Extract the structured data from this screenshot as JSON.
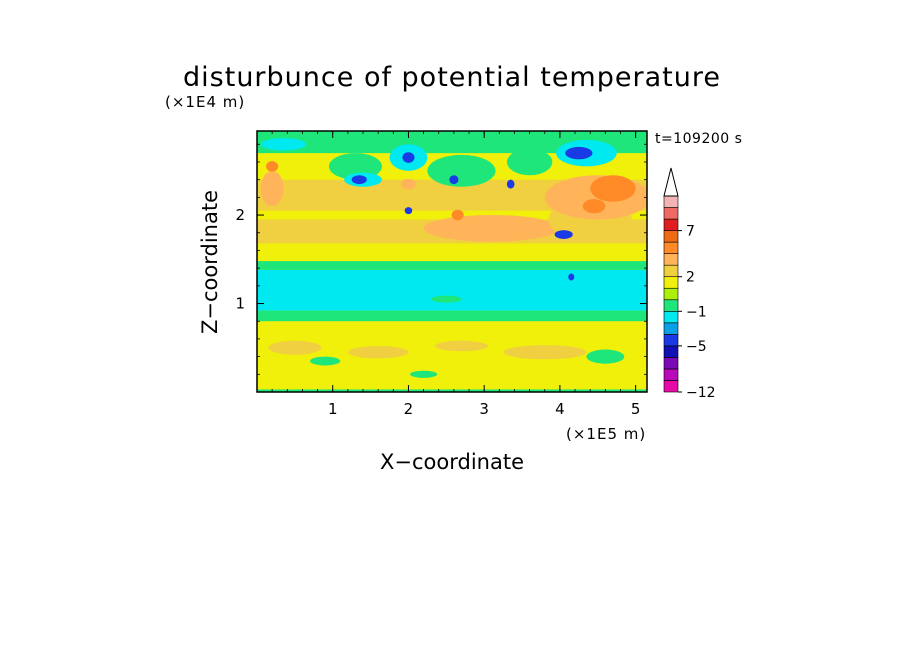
{
  "chart_data": {
    "type": "heatmap",
    "title": "disturbunce of potential temperature",
    "xlabel": "X−coordinate",
    "ylabel": "Z−coordinate",
    "x_unit": "(×1E5 m)",
    "y_unit": "(×1E4 m)",
    "time_label": "t=109200 s",
    "xlim": [
      0,
      5.15
    ],
    "ylim": [
      0,
      2.95
    ],
    "xticks": [
      1,
      2,
      3,
      4,
      5
    ],
    "xtick_labels": [
      "1",
      "2",
      "3",
      "4",
      "5"
    ],
    "yticks": [
      1,
      2
    ],
    "ytick_labels": [
      "1",
      "2"
    ],
    "colorbar": {
      "colors": [
        "#e70aa6",
        "#b80ab8",
        "#7a0ab5",
        "#1010b5",
        "#1a3ae6",
        "#0aa0e6",
        "#00e8f0",
        "#1ee67a",
        "#aaf00a",
        "#f0f00a",
        "#f0d040",
        "#ffb45a",
        "#ff8a28",
        "#ee6a14",
        "#e01e1e",
        "#ef6a64",
        "#f5b4b4"
      ],
      "tick_labels": [
        "−12",
        "−5",
        "−1",
        "2",
        "7"
      ],
      "extend_top": true
    },
    "bands": [
      {
        "z0": 0.0,
        "z1": 0.03,
        "level": 7
      },
      {
        "z0": 0.03,
        "z1": 0.8,
        "level": 9
      },
      {
        "z0": 0.8,
        "z1": 0.92,
        "level": 7
      },
      {
        "z0": 0.92,
        "z1": 1.38,
        "level": 6
      },
      {
        "z0": 1.38,
        "z1": 1.48,
        "level": 7
      },
      {
        "z0": 1.48,
        "z1": 1.68,
        "level": 9
      },
      {
        "z0": 1.68,
        "z1": 1.95,
        "level": 10
      },
      {
        "z0": 1.95,
        "z1": 2.05,
        "level": 9
      },
      {
        "z0": 2.05,
        "z1": 2.4,
        "level": 10
      },
      {
        "z0": 2.4,
        "z1": 2.7,
        "level": 9
      },
      {
        "z0": 2.7,
        "z1": 2.95,
        "level": 7
      }
    ],
    "patches": [
      {
        "x": 0.5,
        "z": 0.5,
        "rx": 0.35,
        "rz": 0.08,
        "level": 10
      },
      {
        "x": 1.6,
        "z": 0.45,
        "rx": 0.4,
        "rz": 0.07,
        "level": 10
      },
      {
        "x": 2.7,
        "z": 0.52,
        "rx": 0.35,
        "rz": 0.06,
        "level": 10
      },
      {
        "x": 3.8,
        "z": 0.45,
        "rx": 0.55,
        "rz": 0.08,
        "level": 10
      },
      {
        "x": 4.6,
        "z": 0.4,
        "rx": 0.25,
        "rz": 0.08,
        "level": 7
      },
      {
        "x": 0.9,
        "z": 0.35,
        "rx": 0.2,
        "rz": 0.05,
        "level": 7
      },
      {
        "x": 2.2,
        "z": 0.2,
        "rx": 0.18,
        "rz": 0.04,
        "level": 7
      },
      {
        "x": 1.0,
        "z": 1.2,
        "rx": 0.9,
        "rz": 0.06,
        "level": 6
      },
      {
        "x": 2.5,
        "z": 1.05,
        "rx": 0.2,
        "rz": 0.04,
        "level": 7
      },
      {
        "x": 3.1,
        "z": 1.85,
        "rx": 0.9,
        "rz": 0.15,
        "level": 11
      },
      {
        "x": 4.4,
        "z": 1.95,
        "rx": 0.55,
        "rz": 0.25,
        "level": 10
      },
      {
        "x": 4.5,
        "z": 2.2,
        "rx": 0.7,
        "rz": 0.25,
        "level": 11
      },
      {
        "x": 4.7,
        "z": 2.3,
        "rx": 0.3,
        "rz": 0.15,
        "level": 12
      },
      {
        "x": 0.2,
        "z": 2.3,
        "rx": 0.15,
        "rz": 0.2,
        "level": 11
      },
      {
        "x": 1.3,
        "z": 2.55,
        "rx": 0.35,
        "rz": 0.15,
        "level": 7
      },
      {
        "x": 0.35,
        "z": 2.8,
        "rx": 0.3,
        "rz": 0.07,
        "level": 6
      },
      {
        "x": 2.0,
        "z": 2.65,
        "rx": 0.25,
        "rz": 0.15,
        "level": 6
      },
      {
        "x": 2.7,
        "z": 2.5,
        "rx": 0.45,
        "rz": 0.18,
        "level": 7
      },
      {
        "x": 3.6,
        "z": 2.6,
        "rx": 0.3,
        "rz": 0.15,
        "level": 7
      },
      {
        "x": 4.35,
        "z": 2.7,
        "rx": 0.4,
        "rz": 0.15,
        "level": 6
      },
      {
        "x": 1.4,
        "z": 2.4,
        "rx": 0.25,
        "rz": 0.08,
        "level": 6
      },
      {
        "x": 1.35,
        "z": 2.4,
        "rx": 0.1,
        "rz": 0.05,
        "level": 4
      },
      {
        "x": 2.0,
        "z": 2.65,
        "rx": 0.08,
        "rz": 0.06,
        "level": 4
      },
      {
        "x": 2.0,
        "z": 2.05,
        "rx": 0.05,
        "rz": 0.04,
        "level": 4
      },
      {
        "x": 2.6,
        "z": 2.4,
        "rx": 0.06,
        "rz": 0.05,
        "level": 4
      },
      {
        "x": 3.35,
        "z": 2.35,
        "rx": 0.05,
        "rz": 0.05,
        "level": 4
      },
      {
        "x": 4.25,
        "z": 2.7,
        "rx": 0.18,
        "rz": 0.07,
        "level": 4
      },
      {
        "x": 4.05,
        "z": 1.78,
        "rx": 0.12,
        "rz": 0.05,
        "level": 4
      },
      {
        "x": 4.15,
        "z": 1.3,
        "rx": 0.04,
        "rz": 0.04,
        "level": 4
      },
      {
        "x": 2.65,
        "z": 2.0,
        "rx": 0.08,
        "rz": 0.06,
        "level": 12
      },
      {
        "x": 2.0,
        "z": 2.35,
        "rx": 0.1,
        "rz": 0.06,
        "level": 11
      },
      {
        "x": 0.2,
        "z": 2.55,
        "rx": 0.08,
        "rz": 0.06,
        "level": 12
      },
      {
        "x": 4.45,
        "z": 2.1,
        "rx": 0.15,
        "rz": 0.08,
        "level": 12
      }
    ]
  }
}
